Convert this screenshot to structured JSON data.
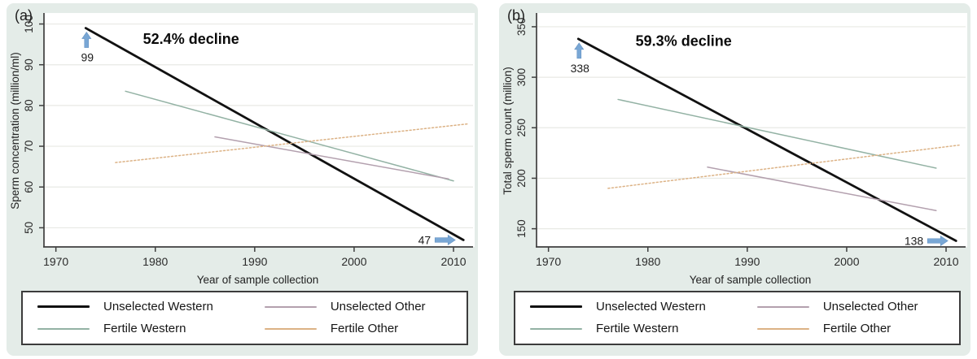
{
  "figure": {
    "page_background": "#ffffff",
    "panel_background": "#e4ece8",
    "plot_background": "#ffffff",
    "gridline_color": "#e8e9e4",
    "axis_color": "#3f3f3f",
    "tick_label_color": "#2b2b2b",
    "arrow_color": "#79a7d5",
    "arrow_edge_color": "#6794c3"
  },
  "legend": {
    "order": [
      0,
      2,
      1,
      3
    ],
    "border_color": "#3c3c3c"
  },
  "chart_data": [
    {
      "type": "line",
      "panel_tag": "(a)",
      "xlabel": "Year of sample collection",
      "ylabel": "Sperm concentration (million/ml)",
      "xlim": [
        1968.8,
        2011.8
      ],
      "ylim": [
        45.3,
        102.3
      ],
      "xticks": [
        1970,
        1980,
        1990,
        2000,
        2010
      ],
      "yticks": [
        50,
        60,
        70,
        80,
        90,
        100
      ],
      "grid": "horizontal",
      "legend_position": "below",
      "decline_label": {
        "text": "52.4% decline",
        "x": 1983.6,
        "y": 96.3
      },
      "series": [
        {
          "name": "Unselected Western",
          "color": "#111111",
          "width": 2.8,
          "dash": "solid",
          "x": [
            1973,
            2011
          ],
          "y": [
            99,
            47
          ]
        },
        {
          "name": "Fertile Western",
          "color": "#93b2a4",
          "width": 1.5,
          "dash": "solid",
          "x": [
            1977,
            2010
          ],
          "y": [
            83.5,
            61.5
          ]
        },
        {
          "name": "Unselected Other",
          "color": "#b3a0ae",
          "width": 1.5,
          "dash": "solid",
          "x": [
            1986,
            2009.5
          ],
          "y": [
            72.3,
            62
          ]
        },
        {
          "name": "Fertile Other",
          "color": "#dcb285",
          "width": 1.5,
          "dash": "dotted",
          "x": [
            1976,
            2011.5
          ],
          "y": [
            66,
            75.5
          ]
        }
      ],
      "point_labels": [
        {
          "text": "99",
          "arrow": "up",
          "x": 1973,
          "y": 99
        },
        {
          "text": "47",
          "arrow": "right",
          "x": 2011,
          "y": 47
        }
      ]
    },
    {
      "type": "line",
      "panel_tag": "(b)",
      "xlabel": "Year of sample collection",
      "ylabel": "Total sperm count (million)",
      "xlim": [
        1968.8,
        2011.8
      ],
      "ylim": [
        132,
        362
      ],
      "xticks": [
        1970,
        1980,
        1990,
        2000,
        2010
      ],
      "yticks": [
        150,
        200,
        250,
        300,
        350
      ],
      "grid": "horizontal",
      "legend_position": "below",
      "decline_label": {
        "text": "59.3% decline",
        "x": 1983.6,
        "y": 336
      },
      "series": [
        {
          "name": "Unselected Western",
          "color": "#111111",
          "width": 2.8,
          "dash": "solid",
          "x": [
            1973,
            2011
          ],
          "y": [
            338,
            138
          ]
        },
        {
          "name": "Fertile Western",
          "color": "#93b2a4",
          "width": 1.5,
          "dash": "solid",
          "x": [
            1977,
            2009
          ],
          "y": [
            278,
            210
          ]
        },
        {
          "name": "Unselected Other",
          "color": "#b3a0ae",
          "width": 1.5,
          "dash": "solid",
          "x": [
            1986,
            2009
          ],
          "y": [
            211,
            168
          ]
        },
        {
          "name": "Fertile Other",
          "color": "#dcb285",
          "width": 1.5,
          "dash": "dotted",
          "x": [
            1976,
            2011.5
          ],
          "y": [
            190,
            233
          ]
        }
      ],
      "point_labels": [
        {
          "text": "338",
          "arrow": "up",
          "x": 1973,
          "y": 338
        },
        {
          "text": "138",
          "arrow": "right",
          "x": 2011,
          "y": 138
        }
      ]
    }
  ]
}
